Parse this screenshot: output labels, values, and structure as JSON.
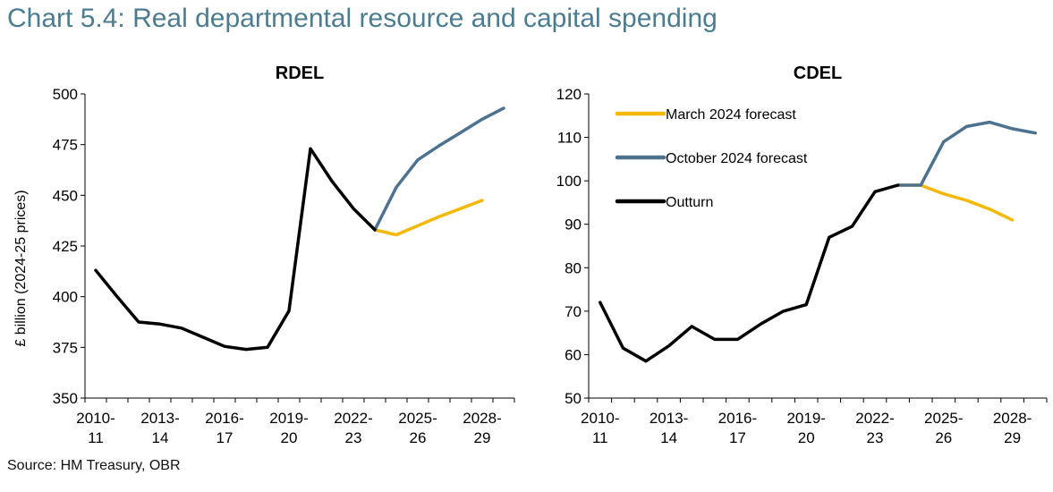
{
  "title": "Chart 5.4: Real departmental resource and capital spending",
  "source": "Source: HM Treasury, OBR",
  "colors": {
    "outturn": "#000000",
    "march": "#f5b800",
    "october": "#4d7290"
  },
  "chart_data": [
    {
      "type": "line",
      "title": "RDEL",
      "ylabel": "£ billion (2024-25 prices)",
      "ylim": [
        350,
        500
      ],
      "yticks": [
        350,
        375,
        400,
        425,
        450,
        475,
        500
      ],
      "xticks": [
        {
          "top": "2010-",
          "bottom": "11"
        },
        {
          "top": "2013-",
          "bottom": "14"
        },
        {
          "top": "2016-",
          "bottom": "17"
        },
        {
          "top": "2019-",
          "bottom": "20"
        },
        {
          "top": "2022-",
          "bottom": "23"
        },
        {
          "top": "2025-",
          "bottom": "26"
        },
        {
          "top": "2028-",
          "bottom": "29"
        }
      ],
      "x": [
        "2010-11",
        "2011-12",
        "2012-13",
        "2013-14",
        "2014-15",
        "2015-16",
        "2016-17",
        "2017-18",
        "2018-19",
        "2019-20",
        "2020-21",
        "2021-22",
        "2022-23",
        "2023-24",
        "2024-25",
        "2025-26",
        "2026-27",
        "2027-28",
        "2028-29",
        "2029-30"
      ],
      "series": [
        {
          "key": "outturn",
          "values": [
            413,
            400,
            387.5,
            386.5,
            384.5,
            380,
            375.5,
            374,
            375,
            393,
            473,
            457,
            443.5,
            433,
            null,
            null,
            null,
            null,
            null,
            null
          ]
        },
        {
          "key": "march",
          "values": [
            null,
            null,
            null,
            null,
            null,
            null,
            null,
            null,
            null,
            null,
            null,
            null,
            null,
            433,
            430.5,
            435,
            439.5,
            443.5,
            447.5,
            null
          ]
        },
        {
          "key": "october",
          "values": [
            null,
            null,
            null,
            null,
            null,
            null,
            null,
            null,
            null,
            null,
            null,
            null,
            null,
            433,
            454,
            467.5,
            474.5,
            481,
            487.5,
            493
          ]
        }
      ],
      "grid": false
    },
    {
      "type": "line",
      "title": "CDEL",
      "ylim": [
        50,
        120
      ],
      "yticks": [
        50,
        60,
        70,
        80,
        90,
        100,
        110,
        120
      ],
      "xticks": [
        {
          "top": "2010-",
          "bottom": "11"
        },
        {
          "top": "2013-",
          "bottom": "14"
        },
        {
          "top": "2016-",
          "bottom": "17"
        },
        {
          "top": "2019-",
          "bottom": "20"
        },
        {
          "top": "2022-",
          "bottom": "23"
        },
        {
          "top": "2025-",
          "bottom": "26"
        },
        {
          "top": "2028-",
          "bottom": "29"
        }
      ],
      "x": [
        "2010-11",
        "2011-12",
        "2012-13",
        "2013-14",
        "2014-15",
        "2015-16",
        "2016-17",
        "2017-18",
        "2018-19",
        "2019-20",
        "2020-21",
        "2021-22",
        "2022-23",
        "2023-24",
        "2024-25",
        "2025-26",
        "2026-27",
        "2027-28",
        "2028-29",
        "2029-30"
      ],
      "series": [
        {
          "key": "outturn",
          "name": "Outturn",
          "values": [
            72,
            61.5,
            58.5,
            62,
            66.5,
            63.5,
            63.5,
            67,
            70,
            71.5,
            87,
            89.5,
            97.5,
            99,
            null,
            null,
            null,
            null,
            null,
            null
          ]
        },
        {
          "key": "march",
          "name": "March 2024 forecast",
          "values": [
            null,
            null,
            null,
            null,
            null,
            null,
            null,
            null,
            null,
            null,
            null,
            null,
            null,
            99,
            99,
            97,
            95.5,
            93.5,
            91,
            null
          ]
        },
        {
          "key": "october",
          "name": "October 2024 forecast",
          "values": [
            null,
            null,
            null,
            null,
            null,
            null,
            null,
            null,
            null,
            null,
            null,
            null,
            null,
            99,
            99,
            109,
            112.5,
            113.5,
            112,
            111
          ]
        }
      ],
      "legend": {
        "placement": "top-left",
        "items": [
          {
            "key": "march",
            "label": "March 2024 forecast"
          },
          {
            "key": "october",
            "label": "October 2024 forecast"
          },
          {
            "key": "outturn",
            "label": "Outturn"
          }
        ]
      },
      "grid": false
    }
  ]
}
